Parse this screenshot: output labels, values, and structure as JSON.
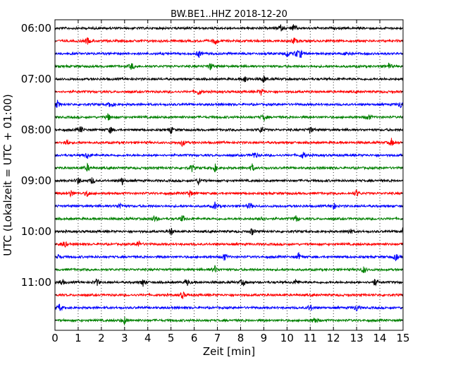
{
  "chart_data": {
    "type": "line",
    "title": "BW.BE1..HHZ 2018-12-20",
    "xlabel": "Zeit  [min]",
    "ylabel": "UTC (Lokalzeit = UTC + 01:00)",
    "xlim": [
      0,
      15
    ],
    "x_ticks": [
      "0",
      "1",
      "2",
      "3",
      "4",
      "5",
      "6",
      "7",
      "8",
      "9",
      "10",
      "11",
      "12",
      "13",
      "14",
      "15"
    ],
    "y_ticks": [
      "06:00",
      "07:00",
      "08:00",
      "09:00",
      "10:00",
      "11:00"
    ],
    "vertical_grid": "dotted",
    "trace_colors": [
      "#000000",
      "#ff0000",
      "#0000ff",
      "#008000"
    ],
    "series": [
      {
        "start": "06:00",
        "events": [
          9.7,
          10.3
        ]
      },
      {
        "start": "06:15",
        "events": [
          1.4,
          6.9,
          10.3
        ]
      },
      {
        "start": "06:30",
        "events": [
          6.2,
          10.0,
          10.4,
          10.6,
          12.6
        ]
      },
      {
        "start": "06:45",
        "events": [
          3.3,
          6.7,
          14.4
        ]
      },
      {
        "start": "07:00",
        "events": [
          8.2,
          9.0
        ]
      },
      {
        "start": "07:15",
        "events": [
          6.2,
          8.9
        ]
      },
      {
        "start": "07:30",
        "events": [
          0.1,
          2.4,
          14.9
        ]
      },
      {
        "start": "07:45",
        "events": [
          2.3,
          9.0,
          13.5
        ]
      },
      {
        "start": "08:00",
        "events": [
          1.1,
          2.4,
          5.0,
          8.9,
          11.0
        ]
      },
      {
        "start": "08:15",
        "events": [
          0.5,
          5.5,
          14.5
        ]
      },
      {
        "start": "08:30",
        "events": [
          1.4,
          8.6,
          10.7
        ]
      },
      {
        "start": "08:45",
        "events": [
          1.4,
          5.9,
          6.9,
          8.5
        ]
      },
      {
        "start": "09:00",
        "events": [
          1.0,
          1.6,
          2.9,
          6.2
        ]
      },
      {
        "start": "09:15",
        "events": [
          0.7,
          1.4,
          5.8,
          13.0
        ]
      },
      {
        "start": "09:30",
        "events": [
          2.8,
          6.9,
          8.4,
          12.0
        ]
      },
      {
        "start": "09:45",
        "events": [
          4.3,
          5.5,
          8.9,
          10.4
        ]
      },
      {
        "start": "10:00",
        "events": [
          5.0,
          8.5,
          12.7,
          15.0
        ]
      },
      {
        "start": "10:15",
        "events": [
          0.4,
          3.6
        ]
      },
      {
        "start": "10:30",
        "events": [
          0.1,
          7.3,
          10.5,
          14.7
        ]
      },
      {
        "start": "10:45",
        "events": [
          6.9,
          13.3
        ]
      },
      {
        "start": "11:00",
        "events": [
          0.3,
          1.8,
          3.8,
          5.7,
          8.1,
          10.4,
          13.8
        ]
      },
      {
        "start": "11:15",
        "events": [
          5.5
        ]
      },
      {
        "start": "11:30",
        "events": [
          0.2,
          11.0,
          13.0
        ]
      },
      {
        "start": "11:45",
        "events": [
          3.0,
          11.2
        ]
      }
    ]
  }
}
